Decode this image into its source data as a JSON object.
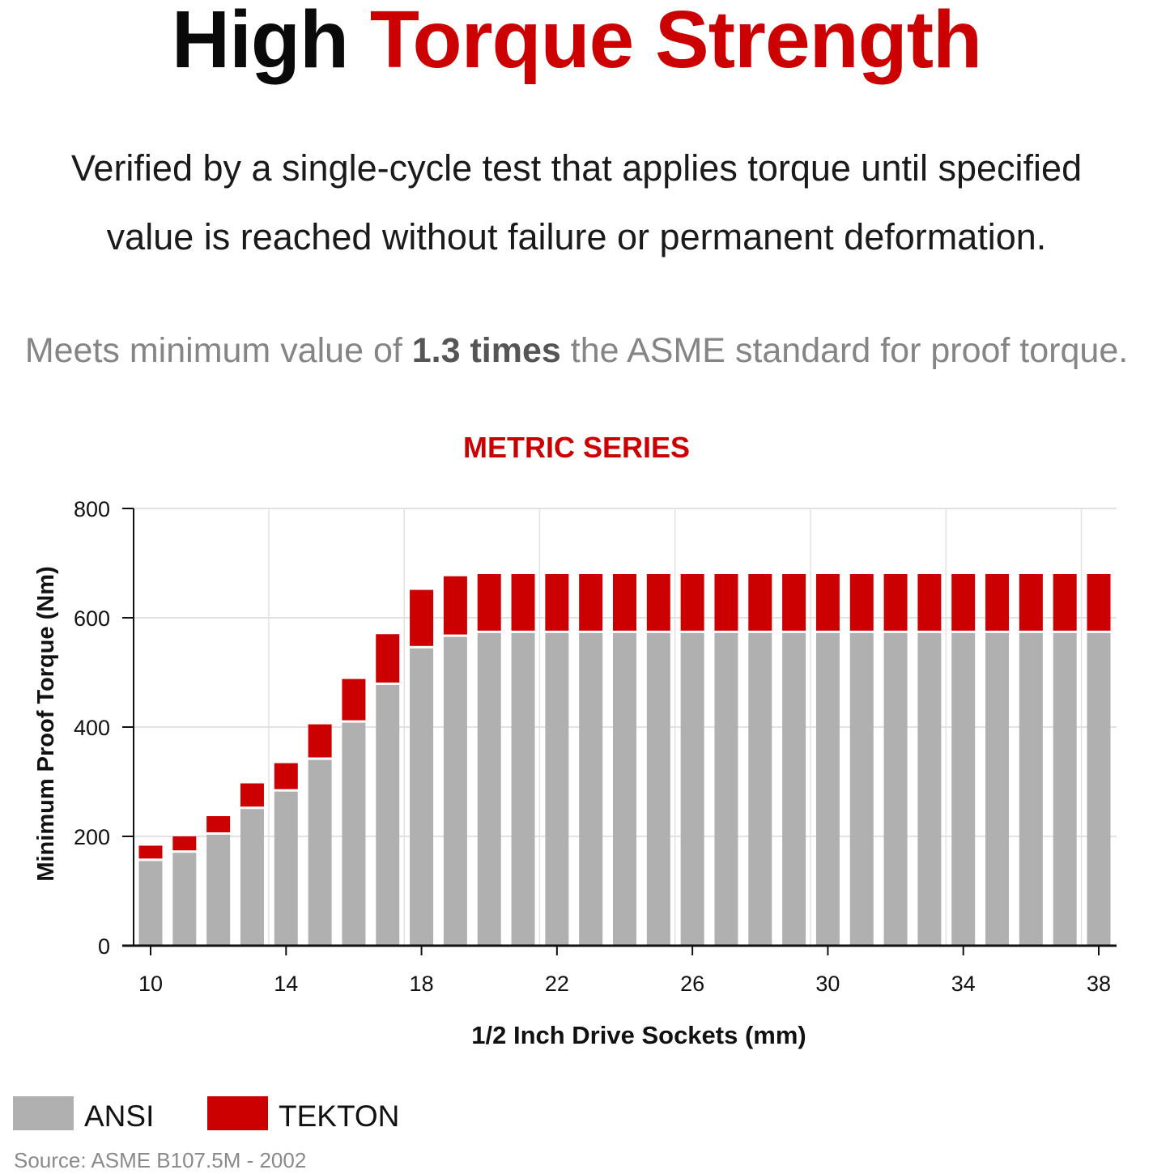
{
  "headline": {
    "part1": "High",
    "part2": "Torque Strength"
  },
  "description": {
    "line1": "Verified by a single-cycle test that applies torque until specified",
    "line2": "value is reached without failure or permanent deformation."
  },
  "meets": {
    "prefix": "Meets minimum value of",
    "bold": "1.3 times",
    "suffix": "the ASME standard for proof torque."
  },
  "colors": {
    "ansi": "#b0b0b0",
    "tekton": "#cc0000",
    "accent": "#cc0000"
  },
  "chart_data": {
    "type": "bar",
    "stacked": true,
    "title": "METRIC SERIES",
    "xlabel": "1/2 Inch Drive Sockets (mm)",
    "ylabel": "Minimum Proof Torque (Nm)",
    "ylim": [
      0,
      800
    ],
    "yticks": [
      0,
      200,
      400,
      600,
      800
    ],
    "xticks": [
      10,
      14,
      18,
      22,
      26,
      30,
      34,
      38
    ],
    "grid": true,
    "legend_position": "bottom-left",
    "categories": [
      10,
      11,
      12,
      13,
      14,
      15,
      16,
      17,
      18,
      19,
      20,
      21,
      22,
      23,
      24,
      25,
      26,
      27,
      28,
      29,
      30,
      31,
      32,
      33,
      34,
      35,
      36,
      37,
      38
    ],
    "series": [
      {
        "name": "ANSI",
        "values": [
          155,
          170,
          203,
          250,
          282,
          340,
          408,
          477,
          544,
          565,
          572,
          572,
          572,
          572,
          572,
          572,
          572,
          572,
          572,
          572,
          572,
          572,
          572,
          572,
          572,
          572,
          572,
          572,
          572
        ]
      },
      {
        "name": "TEKTON",
        "values": [
          28,
          30,
          34,
          47,
          52,
          65,
          80,
          93,
          107,
          111,
          108,
          108,
          108,
          108,
          108,
          108,
          108,
          108,
          108,
          108,
          108,
          108,
          108,
          108,
          108,
          108,
          108,
          108,
          108
        ]
      }
    ]
  },
  "legend": {
    "ansi_label": "ANSI",
    "tekton_label": "TEKTON"
  },
  "source": "Source: ASME B107.5M - 2002"
}
